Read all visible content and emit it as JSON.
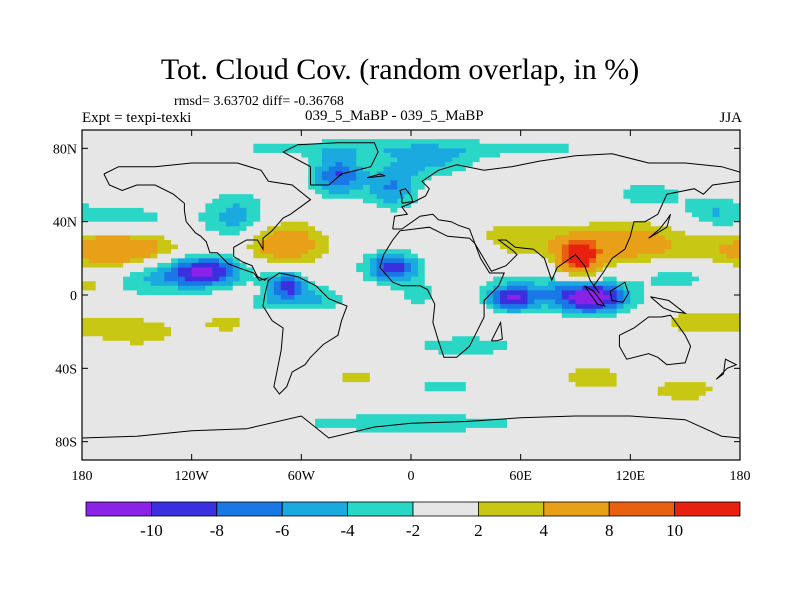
{
  "title": "Tot. Cloud Cov. (random overlap, in %)",
  "stats_text": "rmsd= 3.63702 diff= -0.36768",
  "expt_label": "Expt = texpi-texki",
  "comparison_label": "039_5_MaBP - 039_5_MaBP",
  "season_label": "JJA",
  "chart_data": {
    "type": "heatmap",
    "title": "Tot. Cloud Cov. (random overlap, in %)",
    "variable": "Total cloud cover difference (%)",
    "xlim": [
      -180,
      180
    ],
    "ylim": [
      -90,
      90
    ],
    "x_ticks": [
      {
        "value": -180,
        "label": "180"
      },
      {
        "value": -120,
        "label": "120W"
      },
      {
        "value": -60,
        "label": "60W"
      },
      {
        "value": 0,
        "label": "0"
      },
      {
        "value": 60,
        "label": "60E"
      },
      {
        "value": 120,
        "label": "120E"
      },
      {
        "value": 180,
        "label": "180"
      }
    ],
    "y_ticks": [
      {
        "value": 80,
        "label": "80N"
      },
      {
        "value": 40,
        "label": "40N"
      },
      {
        "value": 0,
        "label": "0"
      },
      {
        "value": -40,
        "label": "40S"
      },
      {
        "value": -80,
        "label": "80S"
      }
    ],
    "colorbar": {
      "tick_labels": [
        "-10",
        "-8",
        "-6",
        "-4",
        "-2",
        "2",
        "4",
        "8",
        "10"
      ],
      "colors": [
        "#8a22e8",
        "#3a30e0",
        "#1a78e6",
        "#1aaae0",
        "#2ad6c6",
        "#e6e6e6",
        "#c8c814",
        "#e8a018",
        "#e86010",
        "#e82010"
      ]
    },
    "features": [
      {
        "lon": -160,
        "lat": 25,
        "value": 9,
        "sx": 22,
        "sy": 7
      },
      {
        "lon": -112,
        "lat": 13,
        "value": -10,
        "sx": 15,
        "sy": 6
      },
      {
        "lon": -142,
        "lat": 10,
        "value": -4,
        "sx": 20,
        "sy": 8
      },
      {
        "lon": -155,
        "lat": 40,
        "value": -3,
        "sx": 25,
        "sy": 8
      },
      {
        "lon": -95,
        "lat": 42,
        "value": -5,
        "sx": 12,
        "sy": 10
      },
      {
        "lon": -70,
        "lat": 28,
        "value": 7,
        "sx": 16,
        "sy": 8
      },
      {
        "lon": -68,
        "lat": 5,
        "value": -9,
        "sx": 8,
        "sy": 6
      },
      {
        "lon": -50,
        "lat": -2,
        "value": -4,
        "sx": 10,
        "sy": 5
      },
      {
        "lon": -10,
        "lat": 15,
        "value": -9,
        "sx": 11,
        "sy": 6
      },
      {
        "lon": 5,
        "lat": 0,
        "value": -3,
        "sx": 8,
        "sy": 5
      },
      {
        "lon": -40,
        "lat": 65,
        "value": -8,
        "sx": 10,
        "sy": 8
      },
      {
        "lon": -10,
        "lat": 58,
        "value": -6,
        "sx": 10,
        "sy": 8
      },
      {
        "lon": 10,
        "lat": 72,
        "value": -4,
        "sx": 18,
        "sy": 6
      },
      {
        "lon": 120,
        "lat": 28,
        "value": 6,
        "sx": 25,
        "sy": 8
      },
      {
        "lon": 92,
        "lat": 20,
        "value": 12,
        "sx": 8,
        "sy": 7
      },
      {
        "lon": 55,
        "lat": 30,
        "value": 4,
        "sx": 18,
        "sy": 7
      },
      {
        "lon": 145,
        "lat": 10,
        "value": -3,
        "sx": 15,
        "sy": 6
      },
      {
        "lon": 100,
        "lat": -2,
        "value": -10,
        "sx": 14,
        "sy": 6
      },
      {
        "lon": 55,
        "lat": -2,
        "value": -9,
        "sx": 9,
        "sy": 5
      },
      {
        "lon": 80,
        "lat": 2,
        "value": -4,
        "sx": 22,
        "sy": 7
      },
      {
        "lon": 160,
        "lat": -15,
        "value": 3,
        "sx": 20,
        "sy": 6
      },
      {
        "lon": -150,
        "lat": -20,
        "value": 3,
        "sx": 20,
        "sy": 7
      },
      {
        "lon": -100,
        "lat": -15,
        "value": 2.5,
        "sx": 12,
        "sy": 5
      },
      {
        "lon": 30,
        "lat": -28,
        "value": -3,
        "sx": 25,
        "sy": 5
      },
      {
        "lon": 100,
        "lat": -45,
        "value": 3,
        "sx": 15,
        "sy": 6
      },
      {
        "lon": 150,
        "lat": -52,
        "value": 3,
        "sx": 15,
        "sy": 6
      },
      {
        "lon": 0,
        "lat": -70,
        "value": -3,
        "sx": 60,
        "sy": 5
      },
      {
        "lon": 0,
        "lat": 80,
        "value": -3,
        "sx": 100,
        "sy": 4
      },
      {
        "lon": -30,
        "lat": -45,
        "value": 2.5,
        "sx": 15,
        "sy": 5
      },
      {
        "lon": 40,
        "lat": 20,
        "value": -2.5,
        "sx": 10,
        "sy": 8
      },
      {
        "lon": -80,
        "lat": -5,
        "value": -3,
        "sx": 6,
        "sy": 4
      },
      {
        "lon": 130,
        "lat": 55,
        "value": -3,
        "sx": 15,
        "sy": 6
      },
      {
        "lon": 165,
        "lat": 45,
        "value": -3.5,
        "sx": 12,
        "sy": 6
      },
      {
        "lon": -175,
        "lat": 5,
        "value": 3,
        "sx": 8,
        "sy": 5
      },
      {
        "lon": 20,
        "lat": -50,
        "value": -2.5,
        "sx": 20,
        "sy": 4
      }
    ]
  }
}
